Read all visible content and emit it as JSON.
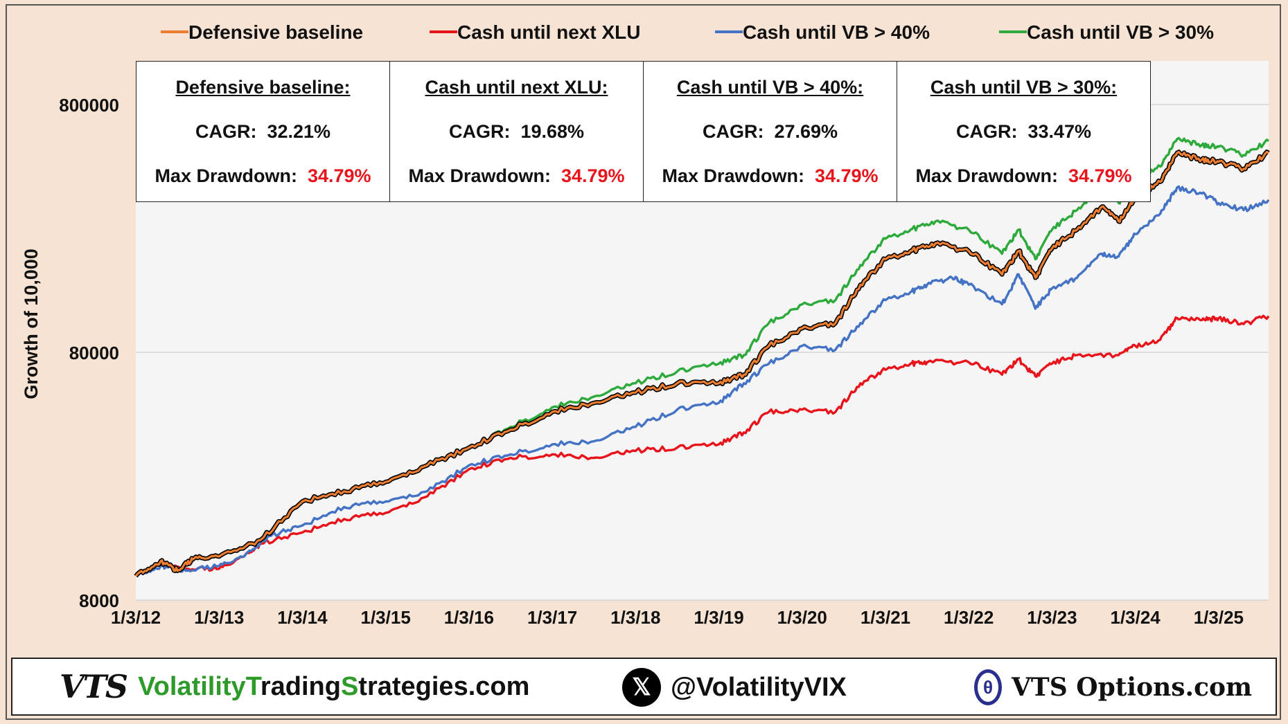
{
  "chart_data": {
    "type": "line",
    "ylabel": "Growth of 10,000",
    "yscale": "log",
    "ylim": [
      8000,
      1200000
    ],
    "yticks": [
      8000,
      80000,
      800000
    ],
    "xticks": [
      "1/3/12",
      "1/3/13",
      "1/3/14",
      "1/3/15",
      "1/3/16",
      "1/3/17",
      "1/3/18",
      "1/3/19",
      "1/3/20",
      "1/3/21",
      "1/3/22",
      "1/3/23",
      "1/3/24",
      "1/3/25"
    ],
    "xlim": [
      2012.0,
      2025.6
    ],
    "grid": "horizontal",
    "legend": "top",
    "series": [
      {
        "name": "Cash until next XLU",
        "color": "#e8141b",
        "points": [
          [
            2012.0,
            10000
          ],
          [
            2012.3,
            11000
          ],
          [
            2012.6,
            10700
          ],
          [
            2013.0,
            10700
          ],
          [
            2013.3,
            12000
          ],
          [
            2013.5,
            13500
          ],
          [
            2014.0,
            15000
          ],
          [
            2014.5,
            17000
          ],
          [
            2015.0,
            18000
          ],
          [
            2015.5,
            21000
          ],
          [
            2016.0,
            27000
          ],
          [
            2016.5,
            30000
          ],
          [
            2017.0,
            31000
          ],
          [
            2017.5,
            30000
          ],
          [
            2018.0,
            32000
          ],
          [
            2018.5,
            33000
          ],
          [
            2019.0,
            34000
          ],
          [
            2019.3,
            38000
          ],
          [
            2019.6,
            46000
          ],
          [
            2020.0,
            47000
          ],
          [
            2020.4,
            46000
          ],
          [
            2020.7,
            60000
          ],
          [
            2021.0,
            68000
          ],
          [
            2021.3,
            72000
          ],
          [
            2021.5,
            73000
          ],
          [
            2022.0,
            73000
          ],
          [
            2022.4,
            65000
          ],
          [
            2022.6,
            75000
          ],
          [
            2022.8,
            64000
          ],
          [
            2023.0,
            72000
          ],
          [
            2023.3,
            78000
          ],
          [
            2023.8,
            78000
          ],
          [
            2024.0,
            85000
          ],
          [
            2024.3,
            90000
          ],
          [
            2024.5,
            110000
          ],
          [
            2024.8,
            108000
          ],
          [
            2025.0,
            110000
          ],
          [
            2025.3,
            104000
          ],
          [
            2025.6,
            112000
          ]
        ]
      },
      {
        "name": "Cash until VB > 40%",
        "color": "#4472c4",
        "points": [
          [
            2012.0,
            10000
          ],
          [
            2012.3,
            11000
          ],
          [
            2012.6,
            10500
          ],
          [
            2013.0,
            11000
          ],
          [
            2013.3,
            12000
          ],
          [
            2013.6,
            14500
          ],
          [
            2014.0,
            16000
          ],
          [
            2014.5,
            19000
          ],
          [
            2015.0,
            20000
          ],
          [
            2015.5,
            22000
          ],
          [
            2016.0,
            28000
          ],
          [
            2016.5,
            31000
          ],
          [
            2017.0,
            34000
          ],
          [
            2017.5,
            35000
          ],
          [
            2018.0,
            40000
          ],
          [
            2018.5,
            47000
          ],
          [
            2019.0,
            50000
          ],
          [
            2019.3,
            60000
          ],
          [
            2019.6,
            72000
          ],
          [
            2020.0,
            85000
          ],
          [
            2020.4,
            82000
          ],
          [
            2020.7,
            105000
          ],
          [
            2021.0,
            130000
          ],
          [
            2021.3,
            140000
          ],
          [
            2021.5,
            150000
          ],
          [
            2021.8,
            160000
          ],
          [
            2022.0,
            150000
          ],
          [
            2022.4,
            125000
          ],
          [
            2022.6,
            165000
          ],
          [
            2022.8,
            120000
          ],
          [
            2023.0,
            145000
          ],
          [
            2023.3,
            160000
          ],
          [
            2023.6,
            200000
          ],
          [
            2023.8,
            195000
          ],
          [
            2024.0,
            240000
          ],
          [
            2024.3,
            290000
          ],
          [
            2024.5,
            370000
          ],
          [
            2024.8,
            350000
          ],
          [
            2025.0,
            320000
          ],
          [
            2025.3,
            300000
          ],
          [
            2025.6,
            330000
          ]
        ]
      },
      {
        "name": "Cash until VB > 30%",
        "color": "#2eaa3c",
        "points": [
          [
            2012.0,
            10000
          ],
          [
            2012.3,
            11500
          ],
          [
            2012.5,
            10500
          ],
          [
            2012.7,
            11800
          ],
          [
            2013.0,
            12000
          ],
          [
            2013.5,
            14000
          ],
          [
            2014.0,
            20000
          ],
          [
            2014.5,
            22000
          ],
          [
            2015.0,
            24000
          ],
          [
            2015.5,
            28000
          ],
          [
            2016.0,
            33000
          ],
          [
            2016.5,
            40000
          ],
          [
            2017.0,
            48000
          ],
          [
            2017.5,
            53000
          ],
          [
            2018.0,
            60000
          ],
          [
            2018.5,
            67000
          ],
          [
            2019.0,
            72000
          ],
          [
            2019.3,
            78000
          ],
          [
            2019.6,
            105000
          ],
          [
            2020.0,
            125000
          ],
          [
            2020.4,
            130000
          ],
          [
            2020.7,
            180000
          ],
          [
            2021.0,
            230000
          ],
          [
            2021.3,
            250000
          ],
          [
            2021.6,
            270000
          ],
          [
            2022.0,
            250000
          ],
          [
            2022.4,
            200000
          ],
          [
            2022.6,
            250000
          ],
          [
            2022.8,
            190000
          ],
          [
            2023.0,
            250000
          ],
          [
            2023.3,
            300000
          ],
          [
            2023.6,
            370000
          ],
          [
            2023.8,
            320000
          ],
          [
            2024.0,
            400000
          ],
          [
            2024.3,
            450000
          ],
          [
            2024.5,
            580000
          ],
          [
            2024.8,
            550000
          ],
          [
            2025.0,
            540000
          ],
          [
            2025.3,
            500000
          ],
          [
            2025.6,
            570000
          ]
        ]
      },
      {
        "name": "Defensive baseline",
        "color": "#ed7d31",
        "outline": "#000000",
        "points": [
          [
            2012.0,
            10000
          ],
          [
            2012.3,
            11500
          ],
          [
            2012.5,
            10500
          ],
          [
            2012.7,
            11800
          ],
          [
            2013.0,
            12000
          ],
          [
            2013.5,
            14000
          ],
          [
            2014.0,
            20000
          ],
          [
            2014.5,
            22000
          ],
          [
            2015.0,
            24000
          ],
          [
            2015.5,
            28000
          ],
          [
            2016.0,
            33000
          ],
          [
            2016.5,
            39000
          ],
          [
            2017.0,
            46000
          ],
          [
            2017.5,
            50000
          ],
          [
            2018.0,
            55000
          ],
          [
            2018.5,
            60000
          ],
          [
            2019.0,
            60000
          ],
          [
            2019.3,
            65000
          ],
          [
            2019.6,
            85000
          ],
          [
            2020.0,
            100000
          ],
          [
            2020.4,
            105000
          ],
          [
            2020.7,
            150000
          ],
          [
            2021.0,
            190000
          ],
          [
            2021.3,
            205000
          ],
          [
            2021.6,
            220000
          ],
          [
            2022.0,
            205000
          ],
          [
            2022.4,
            165000
          ],
          [
            2022.6,
            205000
          ],
          [
            2022.8,
            160000
          ],
          [
            2023.0,
            210000
          ],
          [
            2023.3,
            250000
          ],
          [
            2023.6,
            310000
          ],
          [
            2023.8,
            270000
          ],
          [
            2024.0,
            340000
          ],
          [
            2024.3,
            390000
          ],
          [
            2024.5,
            510000
          ],
          [
            2024.8,
            480000
          ],
          [
            2025.0,
            470000
          ],
          [
            2025.3,
            440000
          ],
          [
            2025.6,
            510000
          ]
        ]
      }
    ]
  },
  "legend_items": [
    {
      "label": "Defensive baseline",
      "color": "#ed7d31"
    },
    {
      "label": "Cash until next XLU",
      "color": "#e8141b"
    },
    {
      "label": "Cash until VB > 40%",
      "color": "#4472c4"
    },
    {
      "label": "Cash until VB > 30%",
      "color": "#2eaa3c"
    }
  ],
  "stats_boxes": [
    {
      "title": "Defensive baseline:",
      "cagr_label": "CAGR:",
      "cagr_value": "32.21%",
      "dd_label": "Max Drawdown:",
      "dd_value": "34.79%"
    },
    {
      "title": "Cash until next XLU:",
      "cagr_label": "CAGR:",
      "cagr_value": "19.68%",
      "dd_label": "Max Drawdown:",
      "dd_value": "34.79%"
    },
    {
      "title": "Cash until VB > 40%:",
      "cagr_label": "CAGR:",
      "cagr_value": "27.69%",
      "dd_label": "Max Drawdown:",
      "dd_value": "34.79%"
    },
    {
      "title": "Cash until VB > 30%:",
      "cagr_label": "CAGR:",
      "cagr_value": "33.47%",
      "dd_label": "Max Drawdown:",
      "dd_value": "34.79%"
    }
  ],
  "footer": {
    "logo_text": "VTS",
    "site_part1": "Volatility",
    "site_part2": "T",
    "site_part3": "rading",
    "site_part4": "S",
    "site_part5": "trategies.com",
    "x_glyph": "𝕏",
    "handle": "@VolatilityVIX",
    "options_glyph": "θ",
    "options_text": "VTS Options.com"
  }
}
